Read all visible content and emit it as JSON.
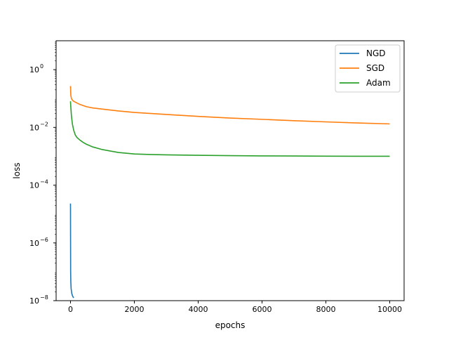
{
  "chart_data": {
    "type": "line",
    "title": "",
    "xlabel": "epochs",
    "ylabel": "loss",
    "xlim": [
      -450,
      10450
    ],
    "ylim": [
      1e-08,
      10
    ],
    "yscale": "log",
    "grid": false,
    "legend_position": "top-right",
    "x_ticks": [
      {
        "value": 0,
        "label": "0"
      },
      {
        "value": 2000,
        "label": "2000"
      },
      {
        "value": 4000,
        "label": "4000"
      },
      {
        "value": 6000,
        "label": "6000"
      },
      {
        "value": 8000,
        "label": "8000"
      },
      {
        "value": 10000,
        "label": "10000"
      }
    ],
    "y_ticks": [
      {
        "value": 1e-08,
        "base": "10",
        "exp": "−8"
      },
      {
        "value": 1e-06,
        "base": "10",
        "exp": "−6"
      },
      {
        "value": 0.0001,
        "base": "10",
        "exp": "−4"
      },
      {
        "value": 0.01,
        "base": "10",
        "exp": "−2"
      },
      {
        "value": 1,
        "base": "10",
        "exp": "0"
      }
    ],
    "series": [
      {
        "name": "NGD",
        "color": "#1f77b4",
        "x": [
          0,
          2,
          5,
          10,
          20,
          40,
          60,
          80,
          100
        ],
        "y": [
          2.3e-05,
          2e-06,
          1e-07,
          4.5e-08,
          2.6e-08,
          1.8e-08,
          1.5e-08,
          1.35e-08,
          1.25e-08
        ]
      },
      {
        "name": "SGD",
        "color": "#ff7f0e",
        "x": [
          0,
          10,
          30,
          60,
          100,
          200,
          300,
          500,
          700,
          1000,
          1500,
          2000,
          3000,
          4000,
          5000,
          6000,
          7000,
          8000,
          9000,
          10000
        ],
        "y": [
          0.27,
          0.13,
          0.1,
          0.088,
          0.08,
          0.07,
          0.062,
          0.052,
          0.047,
          0.043,
          0.037,
          0.033,
          0.028,
          0.024,
          0.021,
          0.019,
          0.017,
          0.0155,
          0.0142,
          0.0132
        ]
      },
      {
        "name": "Adam",
        "color": "#2ca02c",
        "x": [
          0,
          10,
          30,
          60,
          100,
          150,
          200,
          300,
          400,
          500,
          700,
          1000,
          1500,
          2000,
          2500,
          3000,
          4000,
          5000,
          6000,
          7000,
          8000,
          9000,
          10000
        ],
        "y": [
          0.08,
          0.05,
          0.025,
          0.013,
          0.008,
          0.0055,
          0.0045,
          0.0036,
          0.003,
          0.0026,
          0.0021,
          0.0017,
          0.00135,
          0.0012,
          0.00115,
          0.00112,
          0.00108,
          0.00105,
          0.00103,
          0.00102,
          0.00101,
          0.001,
          0.001
        ]
      }
    ]
  }
}
